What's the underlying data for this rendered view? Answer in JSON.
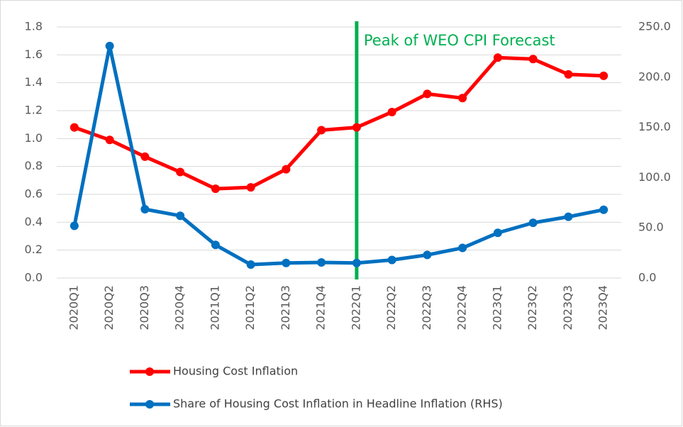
{
  "chart_data": {
    "type": "line",
    "categories": [
      "2020Q1",
      "2020Q2",
      "2020Q3",
      "2020Q4",
      "2021Q1",
      "2021Q2",
      "2021Q3",
      "2021Q4",
      "2022Q1",
      "2022Q2",
      "2022Q3",
      "2022Q4",
      "2023Q1",
      "2023Q2",
      "2023Q3",
      "2023Q4"
    ],
    "series": [
      {
        "name": "Housing Cost Inflation",
        "color": "#ff0000",
        "values": [
          1.08,
          0.99,
          0.87,
          0.76,
          0.64,
          0.65,
          0.78,
          1.06,
          1.08,
          1.19,
          1.32,
          1.29,
          1.58,
          1.57,
          1.46,
          1.45
        ]
      },
      {
        "name": "Share of Housing Cost Inflation in Headline Inflation (RHS)",
        "color": "#0070c0",
        "axis": "y2",
        "values": [
          52,
          231,
          68.5,
          62,
          33,
          13.4,
          15,
          15.5,
          15,
          18,
          23,
          30,
          45,
          55,
          61,
          68
        ]
      }
    ],
    "ylim": [
      0,
      1.8
    ],
    "yticks": [
      {
        "value": 0,
        "label": "0.0"
      },
      {
        "value": 0.2,
        "label": "0.2"
      },
      {
        "value": 0.4,
        "label": "0.4"
      },
      {
        "value": 0.6,
        "label": "0.6"
      },
      {
        "value": 0.8,
        "label": "0.8"
      },
      {
        "value": 1.0,
        "label": "1.0"
      },
      {
        "value": 1.2,
        "label": "1.2"
      },
      {
        "value": 1.4,
        "label": "1.4"
      },
      {
        "value": 1.6,
        "label": "1.6"
      },
      {
        "value": 1.8,
        "label": "1.8"
      }
    ],
    "y2lim": [
      0,
      250
    ],
    "y2ticks": [
      {
        "value": 0,
        "label": "0.0"
      },
      {
        "value": 50,
        "label": "50.0"
      },
      {
        "value": 100,
        "label": "100.0"
      },
      {
        "value": 150,
        "label": "150.0"
      },
      {
        "value": 200,
        "label": "200.0"
      },
      {
        "value": 250,
        "label": "250.0"
      }
    ],
    "grid": true,
    "legend": "bottom",
    "annotation": {
      "text": "Peak of WEO CPI Forecast",
      "x": "2022Q1",
      "color": "#00b050"
    }
  }
}
